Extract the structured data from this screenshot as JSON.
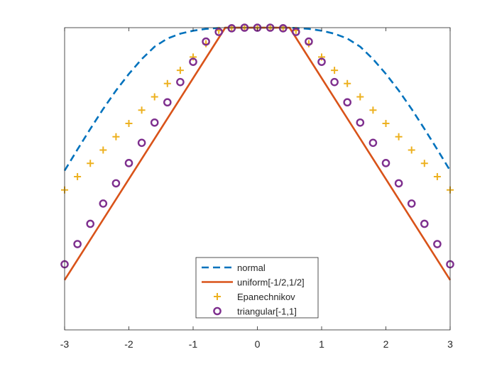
{
  "chart_data": {
    "type": "line",
    "title": "",
    "xlabel": "",
    "ylabel": "",
    "xlim": [
      -3,
      3
    ],
    "ylim": [
      0,
      1
    ],
    "xticks": [
      -3,
      -2,
      -1,
      0,
      1,
      2,
      3
    ],
    "xtick_labels": [
      "-3",
      "-2",
      "-1",
      "0",
      "1",
      "2",
      "3"
    ],
    "yticks_shown": false,
    "grid": false,
    "legend_position": "bottom-center",
    "series": [
      {
        "name": "normal",
        "style": "dashed-line",
        "color": "#0072BD",
        "x": [
          -3.0,
          -2.8,
          -2.6,
          -2.4,
          -2.2,
          -2.0,
          -1.8,
          -1.6,
          -1.4,
          -1.2,
          -1.0,
          -0.8,
          -0.6,
          -0.4,
          -0.2,
          0.0,
          0.2,
          0.4,
          0.6,
          0.8,
          1.0,
          1.2,
          1.4,
          1.6,
          1.8,
          2.0,
          2.2,
          2.4,
          2.6,
          2.8,
          3.0
        ],
        "y": [
          0.527,
          0.597,
          0.665,
          0.731,
          0.792,
          0.847,
          0.896,
          0.937,
          0.964,
          0.98,
          0.99,
          0.996,
          0.999,
          1.0,
          1.0,
          1.0,
          1.0,
          1.0,
          0.999,
          0.996,
          0.99,
          0.98,
          0.964,
          0.937,
          0.896,
          0.847,
          0.792,
          0.731,
          0.665,
          0.597,
          0.527
        ]
      },
      {
        "name": "uniform[-1/2,1/2]",
        "style": "solid-line",
        "color": "#D95319",
        "x": [
          -3,
          -0.5,
          0.5,
          3
        ],
        "y": [
          0.165,
          1.0,
          1.0,
          0.165
        ]
      },
      {
        "name": "Epanechnikov",
        "style": "plus-markers",
        "color": "#EDB120",
        "x": [
          -3.0,
          -2.8,
          -2.6,
          -2.4,
          -2.2,
          -2.0,
          -1.8,
          -1.6,
          -1.4,
          -1.2,
          -1.0,
          -0.8,
          -0.6,
          -0.4,
          -0.2,
          0.0,
          0.2,
          0.4,
          0.6,
          0.8,
          1.0,
          1.2,
          1.4,
          1.6,
          1.8,
          2.0,
          2.2,
          2.4,
          2.6,
          2.8,
          3.0
        ],
        "y": [
          0.463,
          0.507,
          0.551,
          0.595,
          0.639,
          0.683,
          0.727,
          0.771,
          0.815,
          0.859,
          0.903,
          0.947,
          0.991,
          1.0,
          1.0,
          1.0,
          1.0,
          1.0,
          0.991,
          0.947,
          0.903,
          0.859,
          0.815,
          0.771,
          0.727,
          0.683,
          0.639,
          0.595,
          0.551,
          0.507,
          0.463
        ]
      },
      {
        "name": "triangular[-1,1]",
        "style": "circle-markers",
        "color": "#7E2F8E",
        "x": [
          -3.0,
          -2.8,
          -2.6,
          -2.4,
          -2.2,
          -2.0,
          -1.8,
          -1.6,
          -1.4,
          -1.2,
          -1.0,
          -0.8,
          -0.6,
          -0.4,
          -0.2,
          0.0,
          0.2,
          0.4,
          0.6,
          0.8,
          1.0,
          1.2,
          1.4,
          1.6,
          1.8,
          2.0,
          2.2,
          2.4,
          2.6,
          2.8,
          3.0
        ],
        "y": [
          0.217,
          0.284,
          0.351,
          0.418,
          0.485,
          0.552,
          0.619,
          0.686,
          0.753,
          0.82,
          0.887,
          0.954,
          0.986,
          0.998,
          1.0,
          1.0,
          1.0,
          0.998,
          0.986,
          0.954,
          0.887,
          0.82,
          0.753,
          0.686,
          0.619,
          0.552,
          0.485,
          0.418,
          0.351,
          0.284,
          0.217
        ]
      }
    ]
  }
}
